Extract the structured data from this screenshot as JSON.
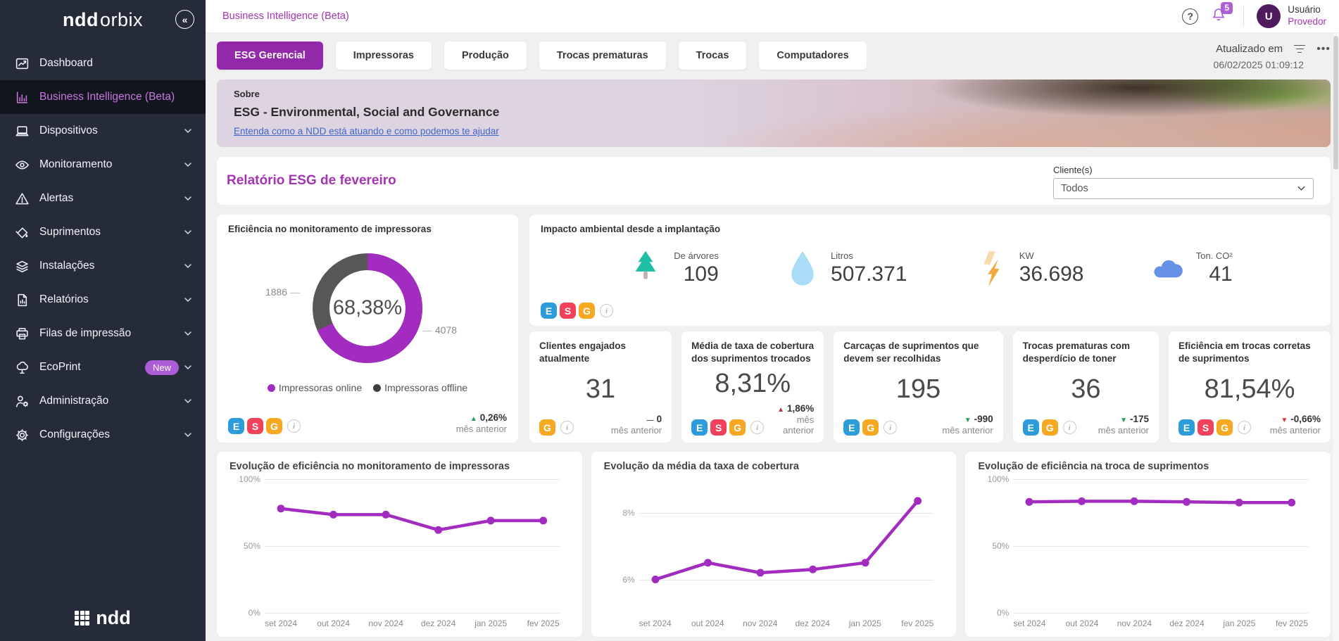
{
  "sidebar": {
    "brand_bold": "ndd",
    "brand_light": "orbix",
    "footer_logo": "ndd",
    "items": [
      {
        "name": "dashboard",
        "label": "Dashboard",
        "icon": "dashboard-icon",
        "active": false,
        "chevron": false
      },
      {
        "name": "business-intelligence",
        "label": "Business Intelligence (Beta)",
        "icon": "bar-chart-icon",
        "active": true,
        "chevron": false
      },
      {
        "name": "dispositivos",
        "label": "Dispositivos",
        "icon": "laptop-icon",
        "active": false,
        "chevron": true
      },
      {
        "name": "monitoramento",
        "label": "Monitoramento",
        "icon": "eye-icon",
        "active": false,
        "chevron": true
      },
      {
        "name": "alertas",
        "label": "Alertas",
        "icon": "alert-triangle-icon",
        "active": false,
        "chevron": true
      },
      {
        "name": "suprimentos",
        "label": "Suprimentos",
        "icon": "paint-bucket-icon",
        "active": false,
        "chevron": true
      },
      {
        "name": "instalacoes",
        "label": "Instalações",
        "icon": "layers-icon",
        "active": false,
        "chevron": true
      },
      {
        "name": "relatorios",
        "label": "Relatórios",
        "icon": "report-document-icon",
        "active": false,
        "chevron": true
      },
      {
        "name": "filas-de-impressao",
        "label": "Filas de impressão",
        "icon": "printer-icon",
        "active": false,
        "chevron": true
      },
      {
        "name": "ecoprint",
        "label": "EcoPrint",
        "icon": "tree-icon",
        "active": false,
        "chevron": true,
        "badge": "New"
      },
      {
        "name": "administracao",
        "label": "Administração",
        "icon": "user-gear-icon",
        "active": false,
        "chevron": true
      },
      {
        "name": "configuracoes",
        "label": "Configurações",
        "icon": "gear-icon",
        "active": false,
        "chevron": true
      }
    ]
  },
  "topbar": {
    "breadcrumb": "Business Intelligence (Beta)",
    "help_label": "?",
    "notification_count": "5",
    "user_initial": "U",
    "user_name": "Usuário",
    "user_role": "Provedor"
  },
  "tabs": [
    {
      "label": "ESG Gerencial",
      "active": true
    },
    {
      "label": "Impressoras",
      "active": false
    },
    {
      "label": "Produção",
      "active": false
    },
    {
      "label": "Trocas prematuras",
      "active": false
    },
    {
      "label": "Trocas",
      "active": false
    },
    {
      "label": "Computadores",
      "active": false
    }
  ],
  "updated": {
    "label": "Atualizado em",
    "timestamp": "06/02/2025 01:09:12"
  },
  "banner": {
    "kicker": "Sobre",
    "title": "ESG - Environmental, Social and Governance",
    "link": "Entenda como a NDD está atuando e como podemos te ajudar"
  },
  "report": {
    "title": "Relatório ESG de fevereiro",
    "client_label": "Cliente(s)",
    "client_value": "Todos"
  },
  "efficiency_card": {
    "title": "Eficiência no monitoramento de impressoras",
    "donut": {
      "percent": 68.38,
      "center_label": "68,38%",
      "online_value": "4078",
      "offline_value": "1886",
      "online_color": "#A32CC0",
      "offline_color": "#575757"
    },
    "legend": [
      {
        "label": "Impressoras online",
        "color": "#A32CC0"
      },
      {
        "label": "Impressoras offline",
        "color": "#3F3F3F"
      }
    ],
    "badges": [
      {
        "label": "E",
        "color": "#2D9CDB"
      },
      {
        "label": "S",
        "color": "#F2415A"
      },
      {
        "label": "G",
        "color": "#F7A823"
      }
    ],
    "delta": {
      "symbol": "▲",
      "value": "0,26%",
      "style": "color:#1E9E5A",
      "caption": "mês anterior"
    }
  },
  "impact_card": {
    "title": "Impacto ambiental desde a implantação",
    "metrics": [
      {
        "icon": "tree-icon",
        "label": "De árvores",
        "value": "109"
      },
      {
        "icon": "water-drop-icon",
        "label": "Litros",
        "value": "507.371"
      },
      {
        "icon": "lightning-icon",
        "label": "KW",
        "value": "36.698"
      },
      {
        "icon": "co2-cloud-icon",
        "label": "Ton. CO²",
        "value": "41"
      }
    ],
    "badges": [
      {
        "label": "E",
        "color": "#2D9CDB"
      },
      {
        "label": "S",
        "color": "#F2415A"
      },
      {
        "label": "G",
        "color": "#F7A823"
      }
    ]
  },
  "kpis": [
    {
      "title": "Clientes engajados atualmente",
      "value": "31",
      "badges": [
        {
          "label": "G",
          "color": "#F7A823"
        }
      ],
      "delta": {
        "symbol": "—",
        "value": "0",
        "color": "#555555"
      },
      "caption": "mês anterior"
    },
    {
      "title": "Média de taxa de cobertura dos suprimentos trocados",
      "value": "8,31%",
      "badges": [
        {
          "label": "E",
          "color": "#2D9CDB"
        },
        {
          "label": "S",
          "color": "#F2415A"
        },
        {
          "label": "G",
          "color": "#F7A823"
        }
      ],
      "delta": {
        "symbol": "▲",
        "value": "1,86%",
        "color": "#B8343C"
      },
      "caption": "mês anterior"
    },
    {
      "title": "Carcaças de suprimentos que devem ser recolhidas",
      "value": "195",
      "badges": [
        {
          "label": "E",
          "color": "#2D9CDB"
        },
        {
          "label": "G",
          "color": "#F7A823"
        }
      ],
      "delta": {
        "symbol": "▼",
        "value": "-990",
        "color": "#1E9E5A"
      },
      "caption": "mês anterior"
    },
    {
      "title": "Trocas prematuras com desperdício de toner",
      "value": "36",
      "badges": [
        {
          "label": "E",
          "color": "#2D9CDB"
        },
        {
          "label": "G",
          "color": "#F7A823"
        }
      ],
      "delta": {
        "symbol": "▼",
        "value": "-175",
        "color": "#1E9E5A"
      },
      "caption": "mês anterior"
    },
    {
      "title": "Eficiência em trocas corretas de suprimentos",
      "value": "81,54%",
      "badges": [
        {
          "label": "E",
          "color": "#2D9CDB"
        },
        {
          "label": "S",
          "color": "#F2415A"
        },
        {
          "label": "G",
          "color": "#F7A823"
        }
      ],
      "delta": {
        "symbol": "▼",
        "value": "-0,66%",
        "color": "#D13438"
      },
      "caption": "mês anterior"
    }
  ],
  "chart_months": [
    "set 2024",
    "out 2024",
    "nov 2024",
    "dez 2024",
    "jan 2025",
    "fev 2025"
  ],
  "chart_data": [
    {
      "type": "line",
      "title": "Evolução de eficiência no monitoramento de impressoras",
      "color": "#A32CC0",
      "ymin": 0,
      "ymax": 100,
      "yticks": [
        {
          "label": "100%",
          "value": 100
        },
        {
          "label": "50%",
          "value": 50
        },
        {
          "label": "0%",
          "value": 0
        }
      ],
      "x": [
        "set 2024",
        "out 2024",
        "nov 2024",
        "dez 2024",
        "jan 2025",
        "fev 2025"
      ],
      "values": [
        78,
        73.5,
        73.5,
        62,
        69,
        69
      ]
    },
    {
      "type": "line",
      "title": "Evolução da média da taxa de cobertura",
      "color": "#A32CC0",
      "ymin": 5,
      "ymax": 9,
      "yticks": [
        {
          "label": "8%",
          "value": 8
        },
        {
          "label": "6%",
          "value": 6
        }
      ],
      "x": [
        "set 2024",
        "out 2024",
        "nov 2024",
        "dez 2024",
        "jan 2025",
        "fev 2025"
      ],
      "values": [
        6.0,
        6.5,
        6.2,
        6.3,
        6.5,
        8.35
      ]
    },
    {
      "type": "line",
      "title": "Evolução de eficiência na troca de suprimentos",
      "color": "#A32CC0",
      "ymin": 0,
      "ymax": 100,
      "yticks": [
        {
          "label": "100%",
          "value": 100
        },
        {
          "label": "50%",
          "value": 50
        },
        {
          "label": "0%",
          "value": 0
        }
      ],
      "x": [
        "set 2024",
        "out 2024",
        "nov 2024",
        "dez 2024",
        "jan 2025",
        "fev 2025"
      ],
      "values": [
        83,
        83.5,
        83.5,
        83,
        82.5,
        82.5
      ]
    }
  ]
}
